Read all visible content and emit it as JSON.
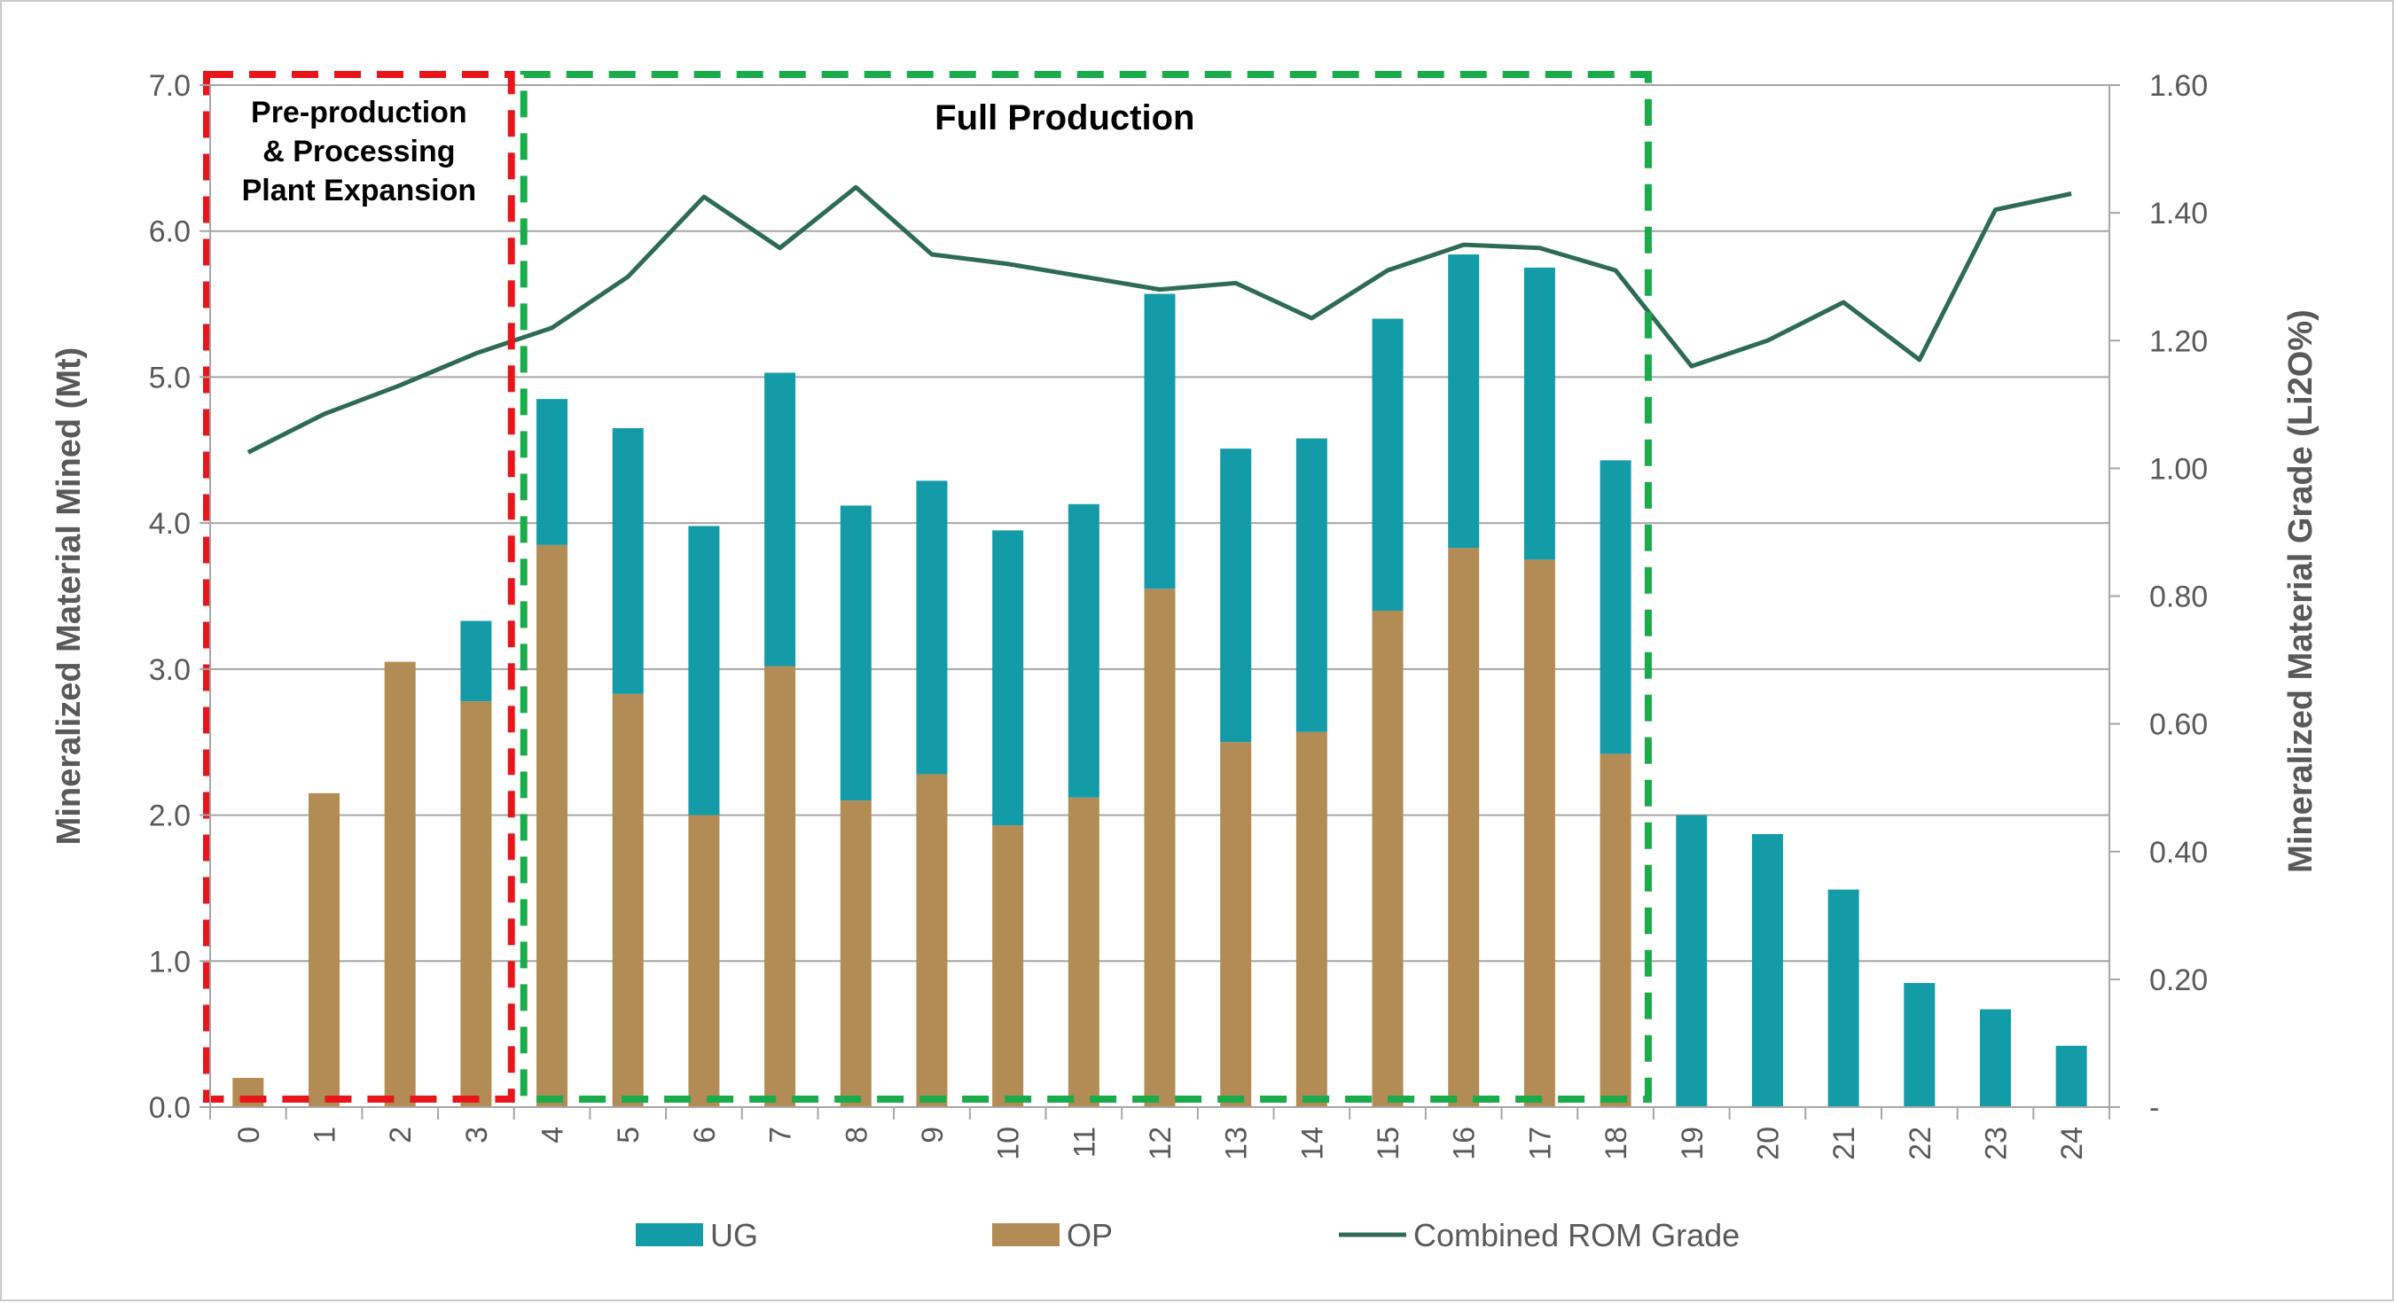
{
  "chart_data": {
    "type": "bar",
    "stacked": true,
    "categories": [
      "0",
      "1",
      "2",
      "3",
      "4",
      "5",
      "6",
      "7",
      "8",
      "9",
      "10",
      "11",
      "12",
      "13",
      "14",
      "15",
      "16",
      "17",
      "18",
      "19",
      "20",
      "21",
      "22",
      "23",
      "24"
    ],
    "series": [
      {
        "name": "OP",
        "kind": "bar",
        "axis": "left",
        "color": "#b38b55",
        "values": [
          0.2,
          2.15,
          3.05,
          2.78,
          3.85,
          2.83,
          2.0,
          3.02,
          2.1,
          2.28,
          1.93,
          2.12,
          3.55,
          2.5,
          2.57,
          3.4,
          3.83,
          3.75,
          2.42,
          0,
          0,
          0,
          0,
          0,
          0
        ]
      },
      {
        "name": "UG",
        "kind": "bar",
        "axis": "left",
        "color": "#139ba8",
        "values": [
          0,
          0,
          0,
          0.55,
          1.0,
          1.82,
          1.98,
          2.01,
          2.02,
          2.01,
          2.02,
          2.01,
          2.02,
          2.01,
          2.01,
          2.0,
          2.01,
          2.0,
          2.01,
          2.0,
          1.87,
          1.49,
          0.85,
          0.67,
          0.42
        ]
      },
      {
        "name": "Combined ROM Grade",
        "kind": "line",
        "axis": "right",
        "color": "#2e6b54",
        "values": [
          1.025,
          1.085,
          1.13,
          1.18,
          1.22,
          1.3,
          1.425,
          1.345,
          1.44,
          1.335,
          1.32,
          1.3,
          1.28,
          1.29,
          1.235,
          1.31,
          1.35,
          1.345,
          1.31,
          1.16,
          1.2,
          1.26,
          1.17,
          1.405,
          1.43
        ]
      }
    ],
    "legend_order": [
      "UG",
      "OP",
      "Combined ROM Grade"
    ],
    "legend_position": "bottom",
    "ylabel": "Mineralized Material Mined (Mt)",
    "y2label": "Mineralized Material Grade (Li2O%)",
    "ylim": [
      0,
      7
    ],
    "y2lim": [
      0,
      1.6
    ],
    "yticks": [
      "0.0",
      "1.0",
      "2.0",
      "3.0",
      "4.0",
      "5.0",
      "6.0",
      "7.0"
    ],
    "y2ticks": [
      "-",
      "0.20",
      "0.40",
      "0.60",
      "0.80",
      "1.00",
      "1.20",
      "1.40",
      "1.60"
    ],
    "grid": true,
    "annotations": [
      {
        "name": "pre-production",
        "lines": [
          "Pre-production",
          "& Processing",
          "Plant Expansion"
        ],
        "color": "#e8161a",
        "start_category": "0",
        "end_category": "3"
      },
      {
        "name": "full-production",
        "lines": [
          "Full Production"
        ],
        "color": "#1aab4b",
        "start_category": "4",
        "end_category": "18"
      }
    ]
  }
}
